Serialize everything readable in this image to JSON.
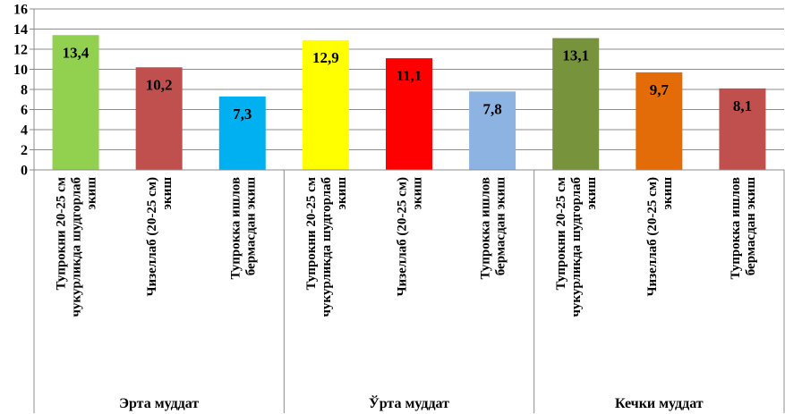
{
  "chart_data": {
    "type": "bar",
    "ylim": [
      0,
      16
    ],
    "ytick_step": 2,
    "yticks": [
      "0",
      "2",
      "4",
      "6",
      "8",
      "10",
      "12",
      "14",
      "16"
    ],
    "grid": true,
    "groups": [
      {
        "label": "Эрта муддат",
        "bars": [
          {
            "category": "Тупрокни 20-25 см чукурликда шудгорлаб экиш",
            "value": 13.4,
            "label": "13,4",
            "color": "#92d050"
          },
          {
            "category": "Чизеллаб (20-25 см) экиш",
            "value": 10.2,
            "label": "10,2",
            "color": "#c0504d"
          },
          {
            "category": "Тупрокка ишлов бермасдан экиш",
            "value": 7.3,
            "label": "7,3",
            "color": "#00b0f0"
          }
        ]
      },
      {
        "label": "Ўрта муддат",
        "bars": [
          {
            "category": "Тупрокни 20-25 см чукурликда шудгорлаб экиш",
            "value": 12.9,
            "label": "12,9",
            "color": "#ffff00"
          },
          {
            "category": "Чизеллаб (20-25 см) экиш",
            "value": 11.1,
            "label": "11,1",
            "color": "#ff0000"
          },
          {
            "category": "Тупрокка ишлов бермасдан экиш",
            "value": 7.8,
            "label": "7,8",
            "color": "#8db3e2"
          }
        ]
      },
      {
        "label": "Кечки муддат",
        "bars": [
          {
            "category": "Тупрокни 20-25 см чукурликда шудгорлаб экиш",
            "value": 13.1,
            "label": "13,1",
            "color": "#77933c"
          },
          {
            "category": "Чизеллаб (20-25 см) экиш",
            "value": 9.7,
            "label": "9,7",
            "color": "#e36c09"
          },
          {
            "category": "Тупрокка ишлов бермасдан экиш",
            "value": 8.1,
            "label": "8,1",
            "color": "#c0504d"
          }
        ]
      }
    ]
  }
}
